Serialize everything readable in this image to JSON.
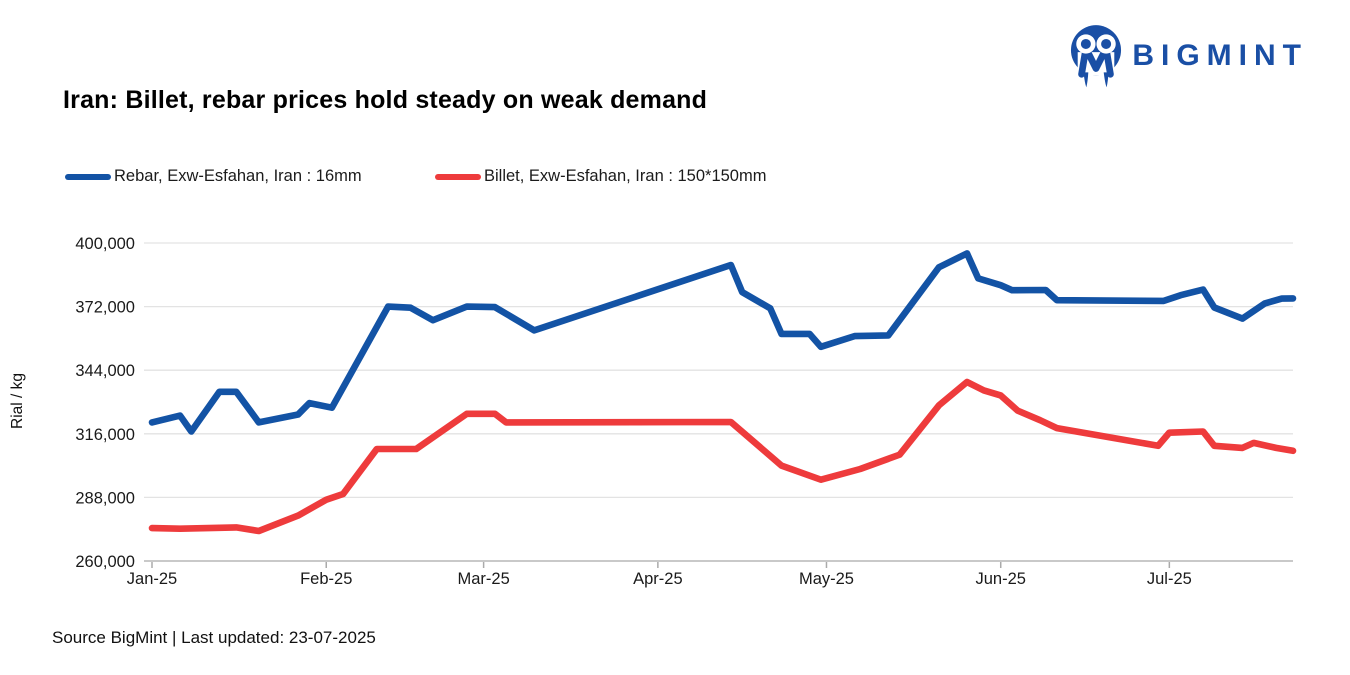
{
  "logo": {
    "text": "BIGMINT",
    "color": "#1a4fa5",
    "icon": "bigmint-droplet-people-circle"
  },
  "title": "Iran: Billet, rebar prices hold steady on weak demand",
  "footer": {
    "source": "Source BigMint | Last updated: 23-07-2025"
  },
  "chart_data": {
    "type": "line",
    "title": "Iran: Billet, rebar prices hold steady on weak demand",
    "xlabel": "",
    "ylabel": "Rial / kg",
    "ylim": [
      260000,
      400000
    ],
    "grid": "horizontal",
    "legend_position": "top-left",
    "colors": {
      "grid": "#e3e3e3",
      "axis": "#c9c9c9",
      "tick": "#aaaaaa",
      "text": "#1a1a1a"
    },
    "yticks": [
      {
        "value": 400000,
        "label": "400,000"
      },
      {
        "value": 372000,
        "label": "372,000"
      },
      {
        "value": 344000,
        "label": "344,000"
      },
      {
        "value": 316000,
        "label": "316,000"
      },
      {
        "value": 288000,
        "label": "288,000"
      },
      {
        "value": 260000,
        "label": "260,000"
      }
    ],
    "x_axis": {
      "unit": "day-of-year 2025",
      "months": [
        {
          "label": "Jan-25",
          "day": 1
        },
        {
          "label": "Feb-25",
          "day": 32
        },
        {
          "label": "Mar-25",
          "day": 60
        },
        {
          "label": "Apr-25",
          "day": 91
        },
        {
          "label": "May-25",
          "day": 121
        },
        {
          "label": "Jun-25",
          "day": 152
        },
        {
          "label": "Jul-25",
          "day": 182
        }
      ]
    },
    "series": [
      {
        "name": "Rebar, Exw-Esfahan, Iran : 16mm",
        "color": "#1353a5",
        "points": [
          [
            1,
            321000
          ],
          [
            6,
            324000
          ],
          [
            8,
            317000
          ],
          [
            13,
            334500
          ],
          [
            16,
            334500
          ],
          [
            20,
            321000
          ],
          [
            27,
            324500
          ],
          [
            29,
            329500
          ],
          [
            33,
            327500
          ],
          [
            43,
            372000
          ],
          [
            47,
            371500
          ],
          [
            51,
            366000
          ],
          [
            57,
            372000
          ],
          [
            62,
            371800
          ],
          [
            69,
            361500
          ],
          [
            104,
            390300
          ],
          [
            106,
            378400
          ],
          [
            111,
            371200
          ],
          [
            113,
            360000
          ],
          [
            118,
            360000
          ],
          [
            120,
            354300
          ],
          [
            126,
            359000
          ],
          [
            132,
            359300
          ],
          [
            141,
            389300
          ],
          [
            146,
            395400
          ],
          [
            148,
            384400
          ],
          [
            152,
            381400
          ],
          [
            154,
            379200
          ],
          [
            160,
            379300
          ],
          [
            162,
            374800
          ],
          [
            181,
            374500
          ],
          [
            184,
            377000
          ],
          [
            188,
            379500
          ],
          [
            190,
            371600
          ],
          [
            195,
            366700
          ],
          [
            199,
            373400
          ],
          [
            202,
            375500
          ],
          [
            204,
            375600
          ]
        ]
      },
      {
        "name": "Billet, Exw-Esfahan, Iran : 150*150mm",
        "color": "#ee3b3c",
        "points": [
          [
            1,
            274500
          ],
          [
            6,
            274200
          ],
          [
            16,
            274800
          ],
          [
            20,
            273200
          ],
          [
            27,
            280000
          ],
          [
            32,
            287000
          ],
          [
            35,
            289500
          ],
          [
            41,
            309300
          ],
          [
            48,
            309300
          ],
          [
            57,
            324800
          ],
          [
            62,
            324800
          ],
          [
            64,
            321000
          ],
          [
            104,
            321200
          ],
          [
            113,
            302000
          ],
          [
            120,
            295800
          ],
          [
            127,
            300500
          ],
          [
            134,
            306800
          ],
          [
            141,
            328500
          ],
          [
            146,
            338800
          ],
          [
            149,
            335100
          ],
          [
            152,
            332900
          ],
          [
            155,
            326200
          ],
          [
            159,
            322000
          ],
          [
            162,
            318500
          ],
          [
            180,
            310700
          ],
          [
            182,
            316500
          ],
          [
            188,
            317000
          ],
          [
            190,
            310700
          ],
          [
            195,
            309800
          ],
          [
            197,
            312000
          ],
          [
            201,
            309800
          ],
          [
            204,
            308500
          ]
        ]
      }
    ]
  }
}
